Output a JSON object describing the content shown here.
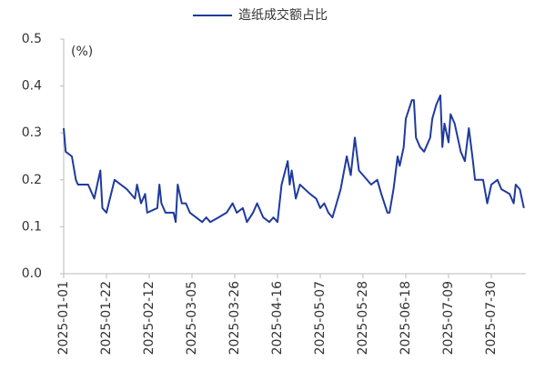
{
  "chart_data": {
    "type": "line",
    "series": [
      {
        "name": "造纸成交额占比",
        "color": "#1f3a9e",
        "x": [
          "2025-01-01",
          "2025-01-02",
          "2025-01-05",
          "2025-01-07",
          "2025-01-08",
          "2025-01-13",
          "2025-01-14",
          "2025-01-16",
          "2025-01-18",
          "2025-01-19",
          "2025-01-20",
          "2025-01-22",
          "2025-01-26",
          "2025-02-01",
          "2025-02-05",
          "2025-02-06",
          "2025-02-08",
          "2025-02-10",
          "2025-02-11",
          "2025-02-16",
          "2025-02-17",
          "2025-02-18",
          "2025-02-20",
          "2025-02-24",
          "2025-02-25",
          "2025-02-26",
          "2025-02-28",
          "2025-03-02",
          "2025-03-04",
          "2025-03-07",
          "2025-03-10",
          "2025-03-12",
          "2025-03-14",
          "2025-03-18",
          "2025-03-22",
          "2025-03-25",
          "2025-03-27",
          "2025-03-30",
          "2025-04-01",
          "2025-04-04",
          "2025-04-06",
          "2025-04-09",
          "2025-04-12",
          "2025-04-14",
          "2025-04-16",
          "2025-04-18",
          "2025-04-21",
          "2025-04-22",
          "2025-04-23",
          "2025-04-25",
          "2025-04-27",
          "2025-05-02",
          "2025-05-05",
          "2025-05-07",
          "2025-05-09",
          "2025-05-11",
          "2025-05-13",
          "2025-05-17",
          "2025-05-20",
          "2025-05-22",
          "2025-05-24",
          "2025-05-26",
          "2025-05-28",
          "2025-06-01",
          "2025-06-04",
          "2025-06-06",
          "2025-06-09",
          "2025-06-10",
          "2025-06-12",
          "2025-06-14",
          "2025-06-15",
          "2025-06-17",
          "2025-06-18",
          "2025-06-21",
          "2025-06-22",
          "2025-06-23",
          "2025-06-25",
          "2025-06-27",
          "2025-06-30",
          "2025-07-01",
          "2025-07-03",
          "2025-07-05",
          "2025-07-06",
          "2025-07-07",
          "2025-07-09",
          "2025-07-10",
          "2025-07-12",
          "2025-07-15",
          "2025-07-17",
          "2025-07-19",
          "2025-07-21",
          "2025-07-22",
          "2025-07-26",
          "2025-07-28",
          "2025-07-30",
          "2025-08-02",
          "2025-08-04",
          "2025-08-08",
          "2025-08-10",
          "2025-08-11",
          "2025-08-13",
          "2025-08-15"
        ],
        "values": [
          0.31,
          0.26,
          0.25,
          0.2,
          0.19,
          0.19,
          0.18,
          0.16,
          0.2,
          0.22,
          0.14,
          0.13,
          0.2,
          0.18,
          0.16,
          0.19,
          0.15,
          0.17,
          0.13,
          0.14,
          0.19,
          0.15,
          0.13,
          0.13,
          0.11,
          0.19,
          0.15,
          0.15,
          0.13,
          0.12,
          0.11,
          0.12,
          0.11,
          0.12,
          0.13,
          0.15,
          0.13,
          0.14,
          0.11,
          0.13,
          0.15,
          0.12,
          0.11,
          0.12,
          0.11,
          0.19,
          0.24,
          0.19,
          0.22,
          0.16,
          0.19,
          0.17,
          0.16,
          0.14,
          0.15,
          0.13,
          0.12,
          0.18,
          0.25,
          0.21,
          0.29,
          0.22,
          0.21,
          0.19,
          0.2,
          0.17,
          0.13,
          0.13,
          0.18,
          0.25,
          0.23,
          0.27,
          0.33,
          0.37,
          0.37,
          0.29,
          0.27,
          0.26,
          0.29,
          0.33,
          0.36,
          0.38,
          0.27,
          0.32,
          0.28,
          0.34,
          0.32,
          0.26,
          0.24,
          0.31,
          0.24,
          0.2,
          0.2,
          0.15,
          0.19,
          0.2,
          0.18,
          0.17,
          0.15,
          0.19,
          0.18,
          0.14
        ]
      }
    ],
    "annotation": "(%)",
    "xlim": [
      "2025-01-01",
      "2025-08-16"
    ],
    "xticks": [
      "2025-01-01",
      "2025-01-22",
      "2025-02-12",
      "2025-03-05",
      "2025-03-26",
      "2025-04-16",
      "2025-05-07",
      "2025-05-28",
      "2025-06-18",
      "2025-07-09",
      "2025-07-30"
    ],
    "ylim": [
      0,
      0.5
    ],
    "yticks": [
      {
        "value": 0,
        "label": "0.0"
      },
      0.1,
      0.2,
      0.3,
      0.4,
      0.5
    ],
    "legend": "top",
    "grid": false
  }
}
